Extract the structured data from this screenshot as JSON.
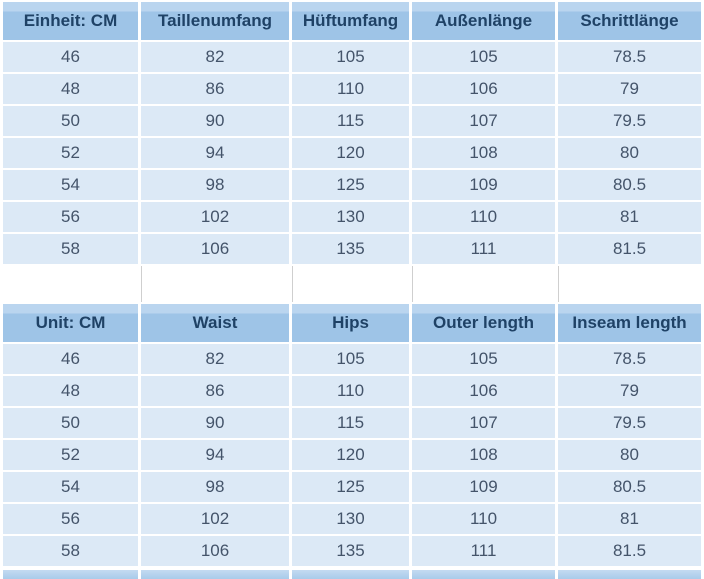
{
  "colors": {
    "header_bg": "#9ec4e7",
    "header_bg_top": "#bad5ef",
    "header_text": "#1f4266",
    "row_bg": "#dce9f6",
    "row_text": "#44546a",
    "gap_line": "#cfcfcf",
    "page_bg": "#ffffff"
  },
  "chart_data": {
    "type": "table",
    "tables": [
      {
        "name": "german",
        "headers": [
          "Einheit: CM",
          "Taillenumfang",
          "Hüftumfang",
          "Außenlänge",
          "Schrittlänge"
        ],
        "rows": [
          [
            "46",
            "82",
            "105",
            "105",
            "78.5"
          ],
          [
            "48",
            "86",
            "110",
            "106",
            "79"
          ],
          [
            "50",
            "90",
            "115",
            "107",
            "79.5"
          ],
          [
            "52",
            "94",
            "120",
            "108",
            "80"
          ],
          [
            "54",
            "98",
            "125",
            "109",
            "80.5"
          ],
          [
            "56",
            "102",
            "130",
            "110",
            "81"
          ],
          [
            "58",
            "106",
            "135",
            "111",
            "81.5"
          ]
        ]
      },
      {
        "name": "english",
        "headers": [
          "Unit: CM",
          "Waist",
          "Hips",
          "Outer length",
          "Inseam length"
        ],
        "rows": [
          [
            "46",
            "82",
            "105",
            "105",
            "78.5"
          ],
          [
            "48",
            "86",
            "110",
            "106",
            "79"
          ],
          [
            "50",
            "90",
            "115",
            "107",
            "79.5"
          ],
          [
            "52",
            "94",
            "120",
            "108",
            "80"
          ],
          [
            "54",
            "98",
            "125",
            "109",
            "80.5"
          ],
          [
            "56",
            "102",
            "130",
            "110",
            "81"
          ],
          [
            "58",
            "106",
            "135",
            "111",
            "81.5"
          ]
        ]
      }
    ]
  }
}
